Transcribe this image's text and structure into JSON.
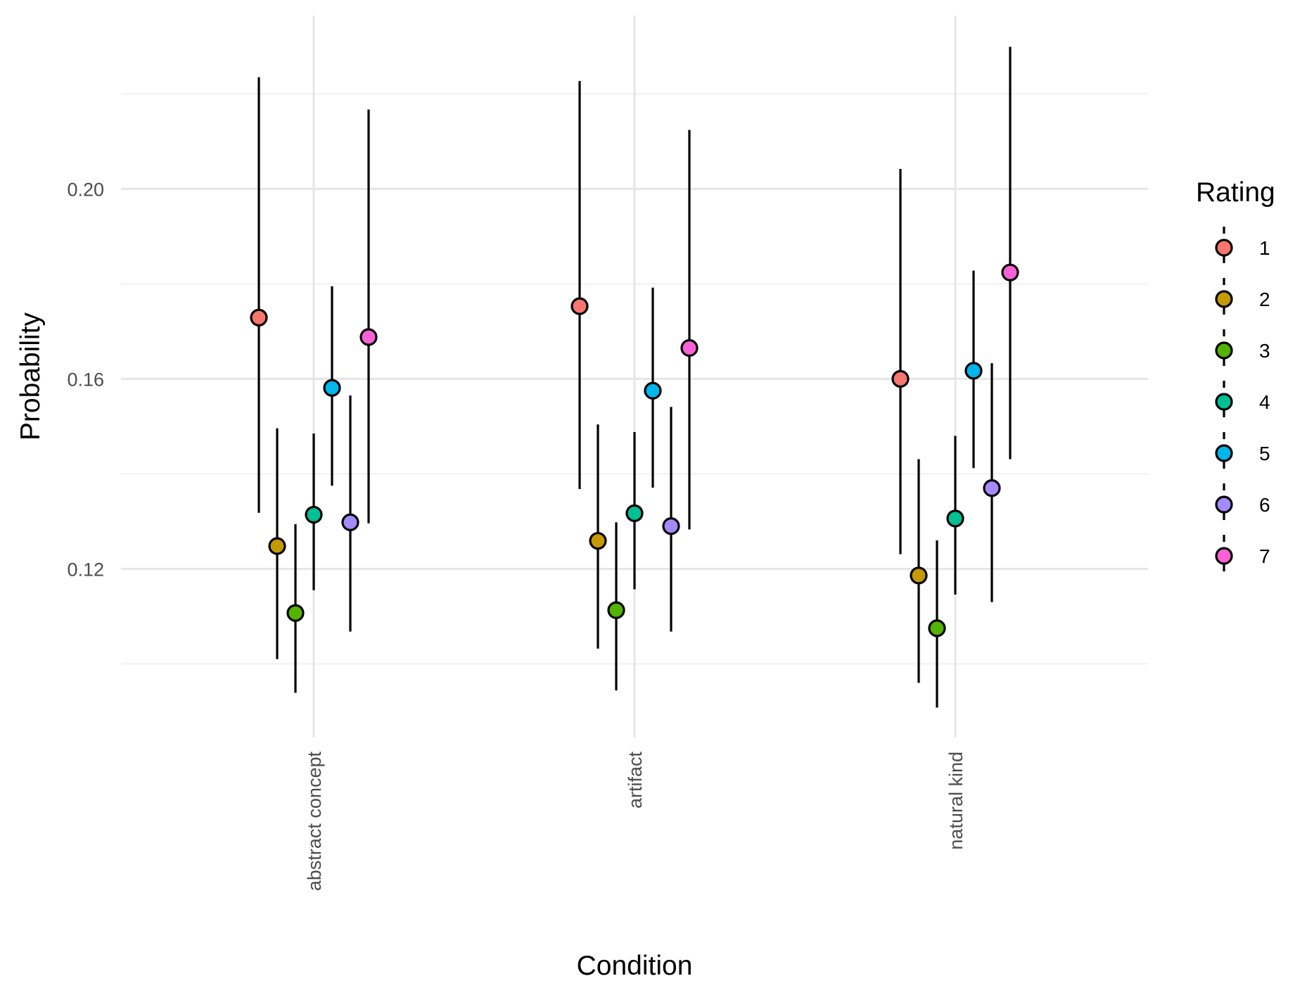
{
  "chart_data": {
    "type": "scatter",
    "subtype": "pointrange",
    "xlabel": "Condition",
    "ylabel": "Probability",
    "categories": [
      "abstract concept",
      "artifact",
      "natural kind"
    ],
    "yticks": [
      0.12,
      0.16,
      0.2
    ],
    "ytick_labels": [
      "0.12",
      "0.16",
      "0.20"
    ],
    "ylim": [
      0.0845,
      0.2365
    ],
    "grid": true,
    "legend": {
      "title": "Rating",
      "position": "right"
    },
    "series": [
      {
        "name": "1",
        "color": "#F8766D",
        "values": [
          0.1729,
          0.1753,
          0.16
        ],
        "lower": [
          0.1318,
          0.1368,
          0.1231
        ],
        "upper": [
          0.2235,
          0.2227,
          0.2042
        ]
      },
      {
        "name": "2",
        "color": "#C49A00",
        "values": [
          0.1248,
          0.1259,
          0.1186
        ],
        "lower": [
          0.101,
          0.1032,
          0.096
        ],
        "upper": [
          0.1496,
          0.1504,
          0.1431
        ]
      },
      {
        "name": "3",
        "color": "#53B400",
        "values": [
          0.1107,
          0.1113,
          0.1075
        ],
        "lower": [
          0.0939,
          0.0944,
          0.0908
        ],
        "upper": [
          0.1294,
          0.1298,
          0.126
        ]
      },
      {
        "name": "4",
        "color": "#00C094",
        "values": [
          0.1314,
          0.1317,
          0.1306
        ],
        "lower": [
          0.1155,
          0.1157,
          0.1146
        ],
        "upper": [
          0.1485,
          0.1488,
          0.148
        ]
      },
      {
        "name": "5",
        "color": "#00B6EB",
        "values": [
          0.1581,
          0.1575,
          0.1617
        ],
        "lower": [
          0.1375,
          0.1371,
          0.1412
        ],
        "upper": [
          0.1795,
          0.1792,
          0.1828
        ]
      },
      {
        "name": "6",
        "color": "#A58AFF",
        "values": [
          0.1298,
          0.129,
          0.137
        ],
        "lower": [
          0.1068,
          0.1068,
          0.113
        ],
        "upper": [
          0.1565,
          0.1541,
          0.1633
        ]
      },
      {
        "name": "7",
        "color": "#FB61D7",
        "values": [
          0.1688,
          0.1665,
          0.1824
        ],
        "lower": [
          0.1296,
          0.1283,
          0.1431
        ],
        "upper": [
          0.2167,
          0.2124,
          0.2299
        ]
      }
    ]
  }
}
